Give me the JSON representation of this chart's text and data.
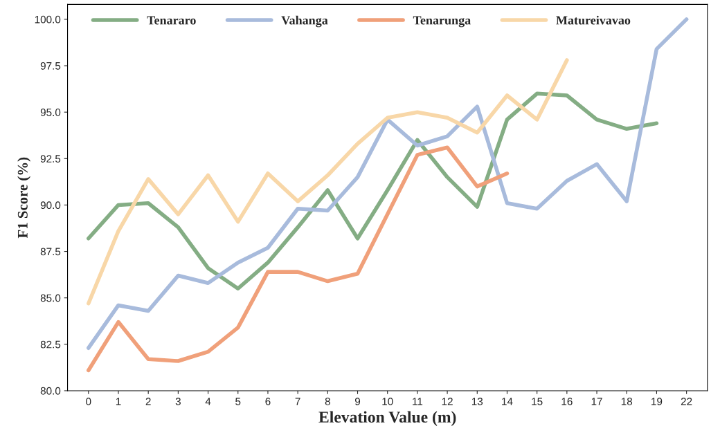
{
  "chart_data": {
    "type": "line",
    "xlabel": "Elevation Value (m)",
    "ylabel": "F1 Score (%)",
    "categories": [
      "0",
      "1",
      "2",
      "3",
      "4",
      "5",
      "6",
      "7",
      "8",
      "9",
      "10",
      "11",
      "12",
      "13",
      "14",
      "15",
      "16",
      "17",
      "18",
      "19",
      "22"
    ],
    "ylim": [
      80,
      100.8
    ],
    "yticks": [
      {
        "value": 80,
        "label": "80.0"
      },
      {
        "value": 82.5,
        "label": "82.5"
      },
      {
        "value": 85,
        "label": "85.0"
      },
      {
        "value": 87.5,
        "label": "87.5"
      },
      {
        "value": 90,
        "label": "90.0"
      },
      {
        "value": 92.5,
        "label": "92.5"
      },
      {
        "value": 95,
        "label": "95.0"
      },
      {
        "value": 97.5,
        "label": "97.5"
      },
      {
        "value": 100,
        "label": "100.0"
      }
    ],
    "grid": false,
    "legend": "top",
    "marker": "none",
    "line_style": "solid",
    "series": [
      {
        "name": "Tenararo",
        "color": "#84ad84",
        "values": [
          88.2,
          90.0,
          90.1,
          88.8,
          86.6,
          85.5,
          86.9,
          88.8,
          90.8,
          88.2,
          90.8,
          93.5,
          91.5,
          89.9,
          94.6,
          96.0,
          95.9,
          94.6,
          94.1,
          94.4,
          null
        ]
      },
      {
        "name": "Vahanga",
        "color": "#a8bbdc",
        "values": [
          82.3,
          84.6,
          84.3,
          86.2,
          85.8,
          86.9,
          87.7,
          89.8,
          89.7,
          91.5,
          94.6,
          93.2,
          93.7,
          95.3,
          90.1,
          89.8,
          91.3,
          92.2,
          90.2,
          98.4,
          100.0
        ]
      },
      {
        "name": "Tenarunga",
        "color": "#f0a07a",
        "values": [
          81.1,
          83.7,
          81.7,
          81.6,
          82.1,
          83.4,
          86.4,
          86.4,
          85.9,
          86.3,
          89.5,
          92.7,
          93.1,
          91.0,
          91.7,
          null,
          null,
          null,
          null,
          null,
          null
        ]
      },
      {
        "name": "Matureivavao",
        "color": "#f8d7a8",
        "values": [
          84.7,
          88.6,
          91.4,
          89.5,
          91.6,
          89.1,
          91.7,
          90.2,
          91.6,
          93.3,
          94.7,
          95.0,
          94.7,
          93.9,
          95.9,
          94.6,
          97.8,
          null,
          null,
          null,
          null
        ]
      }
    ]
  }
}
